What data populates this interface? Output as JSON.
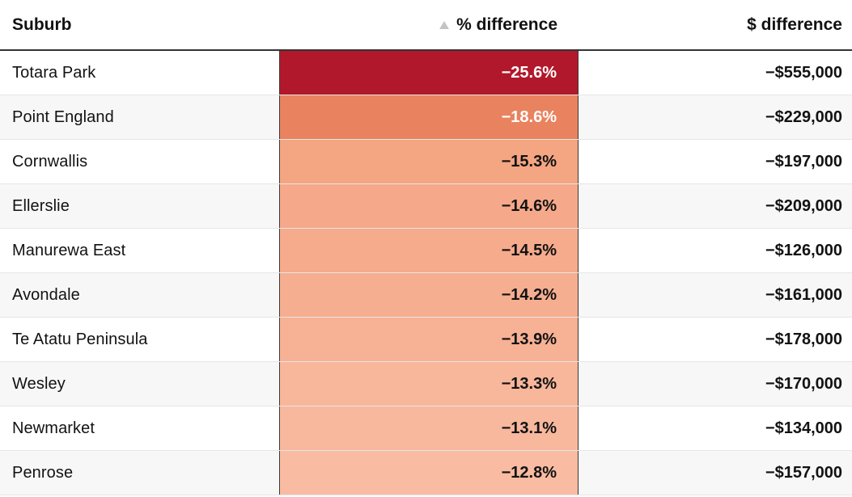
{
  "table": {
    "headers": {
      "suburb": "Suburb",
      "pct": "% difference",
      "dollar": "$ difference"
    },
    "sort_icon": "sort-ascending-triangle-icon",
    "rows": [
      {
        "suburb": "Totara Park",
        "pct": "−25.6%",
        "dollar": "−$555,000",
        "pct_value": -25.6,
        "color": "#b2182b",
        "text_color": "#ffffff"
      },
      {
        "suburb": "Point England",
        "pct": "−18.6%",
        "dollar": "−$229,000",
        "pct_value": -18.6,
        "color": "#e9825f",
        "text_color": "#ffffff"
      },
      {
        "suburb": "Cornwallis",
        "pct": "−15.3%",
        "dollar": "−$197,000",
        "pct_value": -15.3,
        "color": "#f4a582",
        "text_color": "#121212"
      },
      {
        "suburb": "Ellerslie",
        "pct": "−14.6%",
        "dollar": "−$209,000",
        "pct_value": -14.6,
        "color": "#f5a98a",
        "text_color": "#121212"
      },
      {
        "suburb": "Manurewa East",
        "pct": "−14.5%",
        "dollar": "−$126,000",
        "pct_value": -14.5,
        "color": "#f6ab8c",
        "text_color": "#121212"
      },
      {
        "suburb": "Avondale",
        "pct": "−14.2%",
        "dollar": "−$161,000",
        "pct_value": -14.2,
        "color": "#f6ae90",
        "text_color": "#121212"
      },
      {
        "suburb": "Te Atatu Peninsula",
        "pct": "−13.9%",
        "dollar": "−$178,000",
        "pct_value": -13.9,
        "color": "#f7b194",
        "text_color": "#121212"
      },
      {
        "suburb": "Wesley",
        "pct": "−13.3%",
        "dollar": "−$170,000",
        "pct_value": -13.3,
        "color": "#f8b69b",
        "text_color": "#121212"
      },
      {
        "suburb": "Newmarket",
        "pct": "−13.1%",
        "dollar": "−$134,000",
        "pct_value": -13.1,
        "color": "#f8b89e",
        "text_color": "#121212"
      },
      {
        "suburb": "Penrose",
        "pct": "−12.8%",
        "dollar": "−$157,000",
        "pct_value": -12.8,
        "color": "#f9bba2",
        "text_color": "#121212"
      }
    ]
  }
}
